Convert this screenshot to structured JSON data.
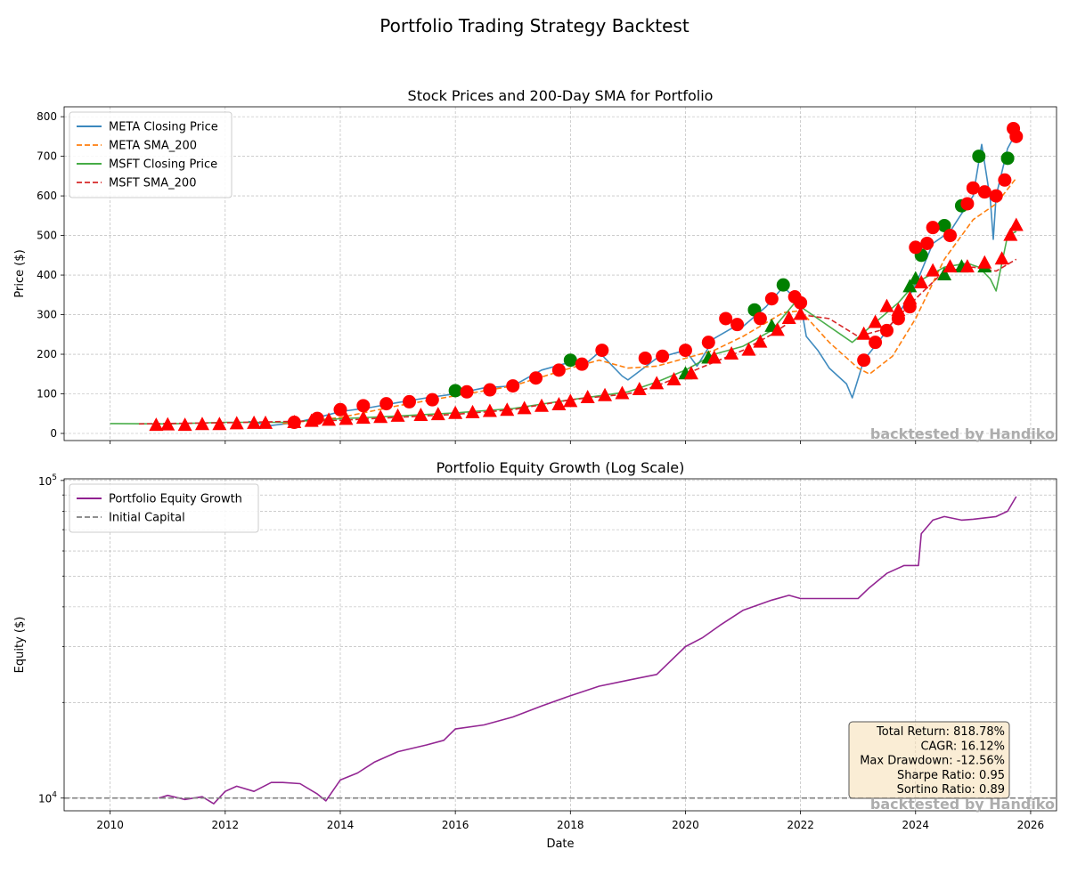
{
  "figure": {
    "suptitle": "Portfolio Trading Strategy Backtest"
  },
  "watermark": "backtested by Handiko",
  "chart_data": [
    {
      "type": "line",
      "title": "Stock Prices and 200-Day SMA for Portfolio",
      "xlabel": "",
      "ylabel": "Price ($)",
      "xlim": [
        2009.2,
        2026.45
      ],
      "ylim": [
        -18,
        825
      ],
      "x_ticks": [
        2010,
        2012,
        2014,
        2016,
        2018,
        2020,
        2022,
        2024,
        2026
      ],
      "y_ticks": [
        0,
        100,
        200,
        300,
        400,
        500,
        600,
        700,
        800
      ],
      "grid": true,
      "legend_position": "upper-left",
      "legend": [
        {
          "label": "META Closing Price",
          "color": "#1f77b4",
          "style": "solid"
        },
        {
          "label": "META SMA_200",
          "color": "#ff7f0e",
          "style": "dashed"
        },
        {
          "label": "MSFT Closing Price",
          "color": "#2ca02c",
          "style": "solid"
        },
        {
          "label": "MSFT SMA_200",
          "color": "#d62728",
          "style": "dashed"
        }
      ],
      "series": [
        {
          "name": "META Closing Price",
          "color": "#1f77b4",
          "style": "solid",
          "x": [
            2012.4,
            2012.8,
            2013.2,
            2013.6,
            2014.0,
            2014.5,
            2015.0,
            2015.5,
            2016.0,
            2016.5,
            2017.0,
            2017.5,
            2018.0,
            2018.3,
            2018.5,
            2018.9,
            2019.0,
            2019.5,
            2020.0,
            2020.2,
            2020.5,
            2020.8,
            2021.0,
            2021.4,
            2021.7,
            2022.0,
            2022.1,
            2022.3,
            2022.5,
            2022.8,
            2022.9,
            2023.1,
            2023.4,
            2023.7,
            2024.0,
            2024.3,
            2024.6,
            2025.0,
            2025.15,
            2025.3,
            2025.35,
            2025.4,
            2025.6,
            2025.75
          ],
          "y": [
            30,
            20,
            27,
            40,
            55,
            65,
            78,
            90,
            100,
            115,
            120,
            160,
            180,
            180,
            205,
            145,
            135,
            190,
            210,
            170,
            240,
            265,
            270,
            320,
            370,
            330,
            245,
            210,
            165,
            125,
            90,
            185,
            240,
            300,
            375,
            480,
            510,
            600,
            730,
            590,
            490,
            600,
            720,
            760
          ]
        },
        {
          "name": "META SMA_200",
          "color": "#ff7f0e",
          "style": "dashed",
          "x": [
            2013.0,
            2014.0,
            2015.0,
            2016.0,
            2017.0,
            2018.0,
            2018.5,
            2019.0,
            2019.5,
            2020.0,
            2020.5,
            2021.0,
            2021.7,
            2022.0,
            2022.5,
            2023.0,
            2023.2,
            2023.6,
            2024.0,
            2024.5,
            2025.0,
            2025.4,
            2025.75
          ],
          "y": [
            25,
            40,
            70,
            95,
            120,
            165,
            185,
            165,
            170,
            190,
            210,
            245,
            305,
            310,
            230,
            165,
            150,
            195,
            290,
            440,
            540,
            580,
            645
          ]
        },
        {
          "name": "MSFT Closing Price",
          "color": "#2ca02c",
          "style": "solid",
          "x": [
            2010.0,
            2011.0,
            2012.0,
            2013.0,
            2014.0,
            2015.0,
            2016.0,
            2017.0,
            2018.0,
            2019.0,
            2019.5,
            2020.0,
            2020.5,
            2021.0,
            2021.5,
            2021.9,
            2022.3,
            2022.7,
            2022.9,
            2023.3,
            2023.7,
            2024.0,
            2024.5,
            2024.9,
            2025.1,
            2025.3,
            2025.4,
            2025.6,
            2025.75
          ],
          "y": [
            25,
            24,
            28,
            28,
            37,
            44,
            52,
            63,
            85,
            105,
            130,
            160,
            200,
            220,
            260,
            330,
            290,
            250,
            230,
            280,
            330,
            380,
            420,
            430,
            420,
            390,
            360,
            500,
            510
          ]
        },
        {
          "name": "MSFT SMA_200",
          "color": "#d62728",
          "style": "dashed",
          "x": [
            2010.5,
            2012.0,
            2014.0,
            2016.0,
            2017.0,
            2018.0,
            2019.0,
            2019.5,
            2020.0,
            2020.5,
            2021.0,
            2021.5,
            2022.0,
            2022.5,
            2023.0,
            2023.5,
            2024.0,
            2024.5,
            2025.0,
            2025.4,
            2025.75
          ],
          "y": [
            24,
            27,
            33,
            48,
            60,
            85,
            100,
            120,
            150,
            180,
            210,
            250,
            300,
            290,
            245,
            265,
            340,
            410,
            420,
            410,
            440
          ]
        }
      ],
      "signals": {
        "meta_buy": {
          "marker": "circle",
          "color": "#008000",
          "x": [
            2016.0,
            2018.0,
            2021.2,
            2021.7,
            2024.1,
            2024.5,
            2024.8,
            2025.1,
            2025.6
          ],
          "y": [
            108,
            185,
            312,
            375,
            450,
            525,
            575,
            700,
            695
          ]
        },
        "meta_sell": {
          "marker": "circle",
          "color": "#ff0000",
          "x": [
            2013.2,
            2013.6,
            2014.0,
            2014.4,
            2014.8,
            2015.2,
            2015.6,
            2016.2,
            2016.6,
            2017.0,
            2017.4,
            2017.8,
            2018.2,
            2018.55,
            2019.3,
            2019.6,
            2020.0,
            2020.4,
            2020.7,
            2020.9,
            2021.3,
            2021.5,
            2021.9,
            2022.0,
            2023.1,
            2023.3,
            2023.5,
            2023.7,
            2023.9,
            2024.0,
            2024.2,
            2024.3,
            2024.6,
            2024.9,
            2025.0,
            2025.2,
            2025.4,
            2025.55,
            2025.7,
            2025.75
          ],
          "y": [
            28,
            38,
            60,
            70,
            75,
            80,
            85,
            105,
            110,
            120,
            140,
            160,
            175,
            210,
            190,
            195,
            210,
            230,
            290,
            275,
            290,
            340,
            345,
            330,
            185,
            230,
            260,
            290,
            320,
            470,
            480,
            520,
            500,
            580,
            620,
            610,
            600,
            640,
            770,
            750
          ]
        },
        "msft_buy": {
          "marker": "triangle",
          "color": "#008000",
          "x": [
            2020.0,
            2020.4,
            2021.5,
            2023.9,
            2024.0,
            2024.5,
            2024.8,
            2025.2
          ],
          "y": [
            150,
            190,
            270,
            370,
            390,
            400,
            420,
            420
          ]
        },
        "msft_sell": {
          "marker": "triangle",
          "color": "#ff0000",
          "x": [
            2010.8,
            2011.0,
            2011.3,
            2011.6,
            2011.9,
            2012.2,
            2012.5,
            2012.7,
            2013.2,
            2013.5,
            2013.8,
            2014.1,
            2014.4,
            2014.7,
            2015.0,
            2015.4,
            2015.7,
            2016.0,
            2016.3,
            2016.6,
            2016.9,
            2017.2,
            2017.5,
            2017.8,
            2018.0,
            2018.3,
            2018.6,
            2018.9,
            2019.2,
            2019.5,
            2019.8,
            2020.1,
            2020.5,
            2020.8,
            2021.1,
            2021.3,
            2021.6,
            2021.8,
            2022.0,
            2023.1,
            2023.3,
            2023.5,
            2023.7,
            2023.9,
            2024.1,
            2024.3,
            2024.6,
            2024.9,
            2025.2,
            2025.5,
            2025.65,
            2025.75
          ],
          "y": [
            20,
            21,
            20,
            22,
            22,
            24,
            25,
            25,
            27,
            30,
            33,
            35,
            38,
            40,
            43,
            45,
            47,
            50,
            52,
            55,
            58,
            62,
            68,
            72,
            80,
            90,
            95,
            100,
            110,
            125,
            135,
            150,
            190,
            200,
            210,
            230,
            260,
            290,
            300,
            250,
            280,
            320,
            310,
            340,
            380,
            410,
            420,
            420,
            430,
            440,
            500,
            525
          ]
        }
      }
    },
    {
      "type": "line",
      "title": "Portfolio Equity Growth (Log Scale)",
      "xlabel": "Date",
      "ylabel": "Equity ($)",
      "xlim": [
        2009.2,
        2026.45
      ],
      "ylim": [
        9120,
        101200
      ],
      "y_scale": "log",
      "x_ticks": [
        2010,
        2012,
        2014,
        2016,
        2018,
        2020,
        2022,
        2024,
        2026
      ],
      "y_ticks": [
        {
          "value": 10000,
          "base": "10",
          "exp": "4"
        },
        {
          "value": 100000,
          "base": "10",
          "exp": "5"
        }
      ],
      "grid": true,
      "legend_position": "upper-left",
      "legend": [
        {
          "label": "Portfolio Equity Growth",
          "color": "#800080",
          "style": "solid"
        },
        {
          "label": "Initial Capital",
          "color": "#808080",
          "style": "dashed"
        }
      ],
      "series": [
        {
          "name": "Portfolio Equity Growth",
          "color": "#800080",
          "style": "solid",
          "x": [
            2010.85,
            2011.0,
            2011.3,
            2011.6,
            2011.8,
            2012.0,
            2012.2,
            2012.5,
            2012.8,
            2013.0,
            2013.3,
            2013.6,
            2013.75,
            2014.0,
            2014.3,
            2014.6,
            2015.0,
            2015.5,
            2015.8,
            2016.0,
            2016.5,
            2017.0,
            2017.5,
            2018.0,
            2018.5,
            2019.0,
            2019.5,
            2020.0,
            2020.3,
            2020.6,
            2021.0,
            2021.5,
            2021.8,
            2022.0,
            2022.5,
            2023.0,
            2023.2,
            2023.5,
            2023.8,
            2024.05,
            2024.1,
            2024.3,
            2024.5,
            2024.8,
            2025.0,
            2025.4,
            2025.6,
            2025.75
          ],
          "y": [
            10000,
            10200,
            9900,
            10100,
            9600,
            10500,
            10900,
            10500,
            11200,
            11200,
            11100,
            10300,
            9800,
            11400,
            12000,
            13000,
            14000,
            14700,
            15200,
            16500,
            17000,
            18000,
            19500,
            21000,
            22500,
            23500,
            24500,
            30000,
            32000,
            35000,
            39000,
            42000,
            43500,
            42500,
            42500,
            42500,
            46000,
            51000,
            54000,
            54000,
            68000,
            75000,
            77000,
            75000,
            75500,
            77000,
            80000,
            89000
          ]
        },
        {
          "name": "Initial Capital",
          "color": "#808080",
          "style": "dashed",
          "x": [
            2009.2,
            2026.45
          ],
          "y": [
            10000,
            10000
          ]
        }
      ],
      "stats": [
        "Total Return: 818.78%",
        "CAGR: 16.12%",
        "Max Drawdown: -12.56%",
        "Sharpe Ratio: 0.95",
        "Sortino Ratio: 0.89"
      ]
    }
  ]
}
